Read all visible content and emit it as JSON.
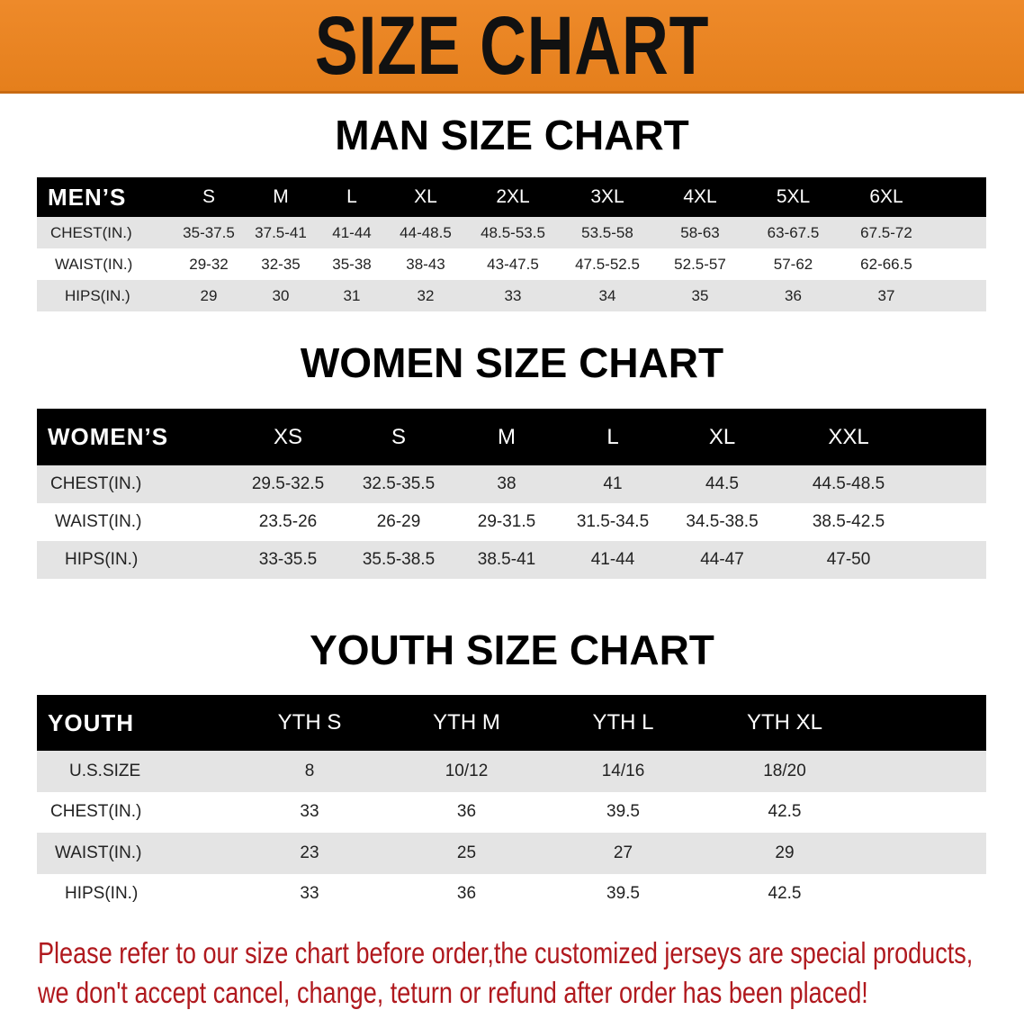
{
  "banner": {
    "title": "SIZE CHART",
    "color": "#e8831f"
  },
  "men": {
    "title": "MAN SIZE CHART",
    "header": [
      "MEN’S",
      "S",
      "M",
      "L",
      "XL",
      "2XL",
      "3XL",
      "4XL",
      "5XL",
      "6XL"
    ],
    "rows": [
      {
        "label": "CHEST(IN.)",
        "values": [
          "35-37.5",
          "37.5-41",
          "41-44",
          "44-48.5",
          "48.5-53.5",
          "53.5-58",
          "58-63",
          "63-67.5",
          "67.5-72"
        ]
      },
      {
        "label": "WAIST(IN.)",
        "values": [
          "29-32",
          "32-35",
          "35-38",
          "38-43",
          "43-47.5",
          "47.5-52.5",
          "52.5-57",
          "57-62",
          "62-66.5"
        ]
      },
      {
        "label": "HIPS(IN.)",
        "values": [
          "29",
          "30",
          "31",
          "32",
          "33",
          "34",
          "35",
          "36",
          "37"
        ]
      }
    ]
  },
  "women": {
    "title": "WOMEN SIZE CHART",
    "header": [
      "WOMEN’S",
      "XS",
      "S",
      "M",
      "L",
      "XL",
      "XXL"
    ],
    "rows": [
      {
        "label": "CHEST(IN.)",
        "values": [
          "29.5-32.5",
          "32.5-35.5",
          "38",
          "41",
          "44.5",
          "44.5-48.5"
        ]
      },
      {
        "label": "WAIST(IN.)",
        "values": [
          "23.5-26",
          "26-29",
          "29-31.5",
          "31.5-34.5",
          "34.5-38.5",
          "38.5-42.5"
        ]
      },
      {
        "label": "HIPS(IN.)",
        "values": [
          "33-35.5",
          "35.5-38.5",
          "38.5-41",
          "41-44",
          "44-47",
          "47-50"
        ]
      }
    ]
  },
  "youth": {
    "title": "YOUTH SIZE CHART",
    "header": [
      "YOUTH",
      "YTH S",
      "YTH M",
      "YTH L",
      "YTH XL"
    ],
    "rows": [
      {
        "label": "U.S.SIZE",
        "values": [
          "8",
          "10/12",
          "14/16",
          "18/20"
        ]
      },
      {
        "label": "CHEST(IN.)",
        "values": [
          "33",
          "36",
          "39.5",
          "42.5"
        ]
      },
      {
        "label": "WAIST(IN.)",
        "values": [
          "23",
          "25",
          "27",
          "29"
        ]
      },
      {
        "label": "HIPS(IN.)",
        "values": [
          "33",
          "36",
          "39.5",
          "42.5"
        ]
      }
    ]
  },
  "footer": {
    "line1": "Please refer to our size chart before order,the customized jerseys are special products,",
    "line2": "we don't accept cancel, change, teturn or refund after order has been placed!",
    "color": "#b0191e"
  }
}
